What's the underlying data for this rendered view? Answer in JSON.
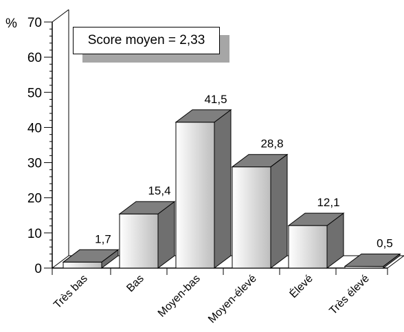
{
  "colors": {
    "bar_front_light": "#ffffff",
    "bar_front_dark": "#bdbdbd",
    "bar_top": "#7f7f7f",
    "bar_side": "#6f6f6f",
    "axis": "#000000",
    "callout_shadow": "#a6a6a6"
  },
  "annotation": {
    "text": "Score moyen = 2,33"
  },
  "chart_data": {
    "type": "bar",
    "title": "",
    "xlabel": "",
    "ylabel": "%",
    "ylim": [
      0,
      70
    ],
    "yticks": [
      "0",
      "10",
      "20",
      "30",
      "40",
      "50",
      "60",
      "70"
    ],
    "categories": [
      "Très bas",
      "Bas",
      "Moyen-bas",
      "Moyen-élevé",
      "Élevé",
      "Très élevé"
    ],
    "values": [
      1.7,
      15.4,
      41.5,
      28.8,
      12.1,
      0.5
    ],
    "value_labels": [
      "1,7",
      "15,4",
      "41,5",
      "28,8",
      "12,1",
      "0,5"
    ],
    "style": "3d-bar",
    "grid": false,
    "legend": "none"
  }
}
